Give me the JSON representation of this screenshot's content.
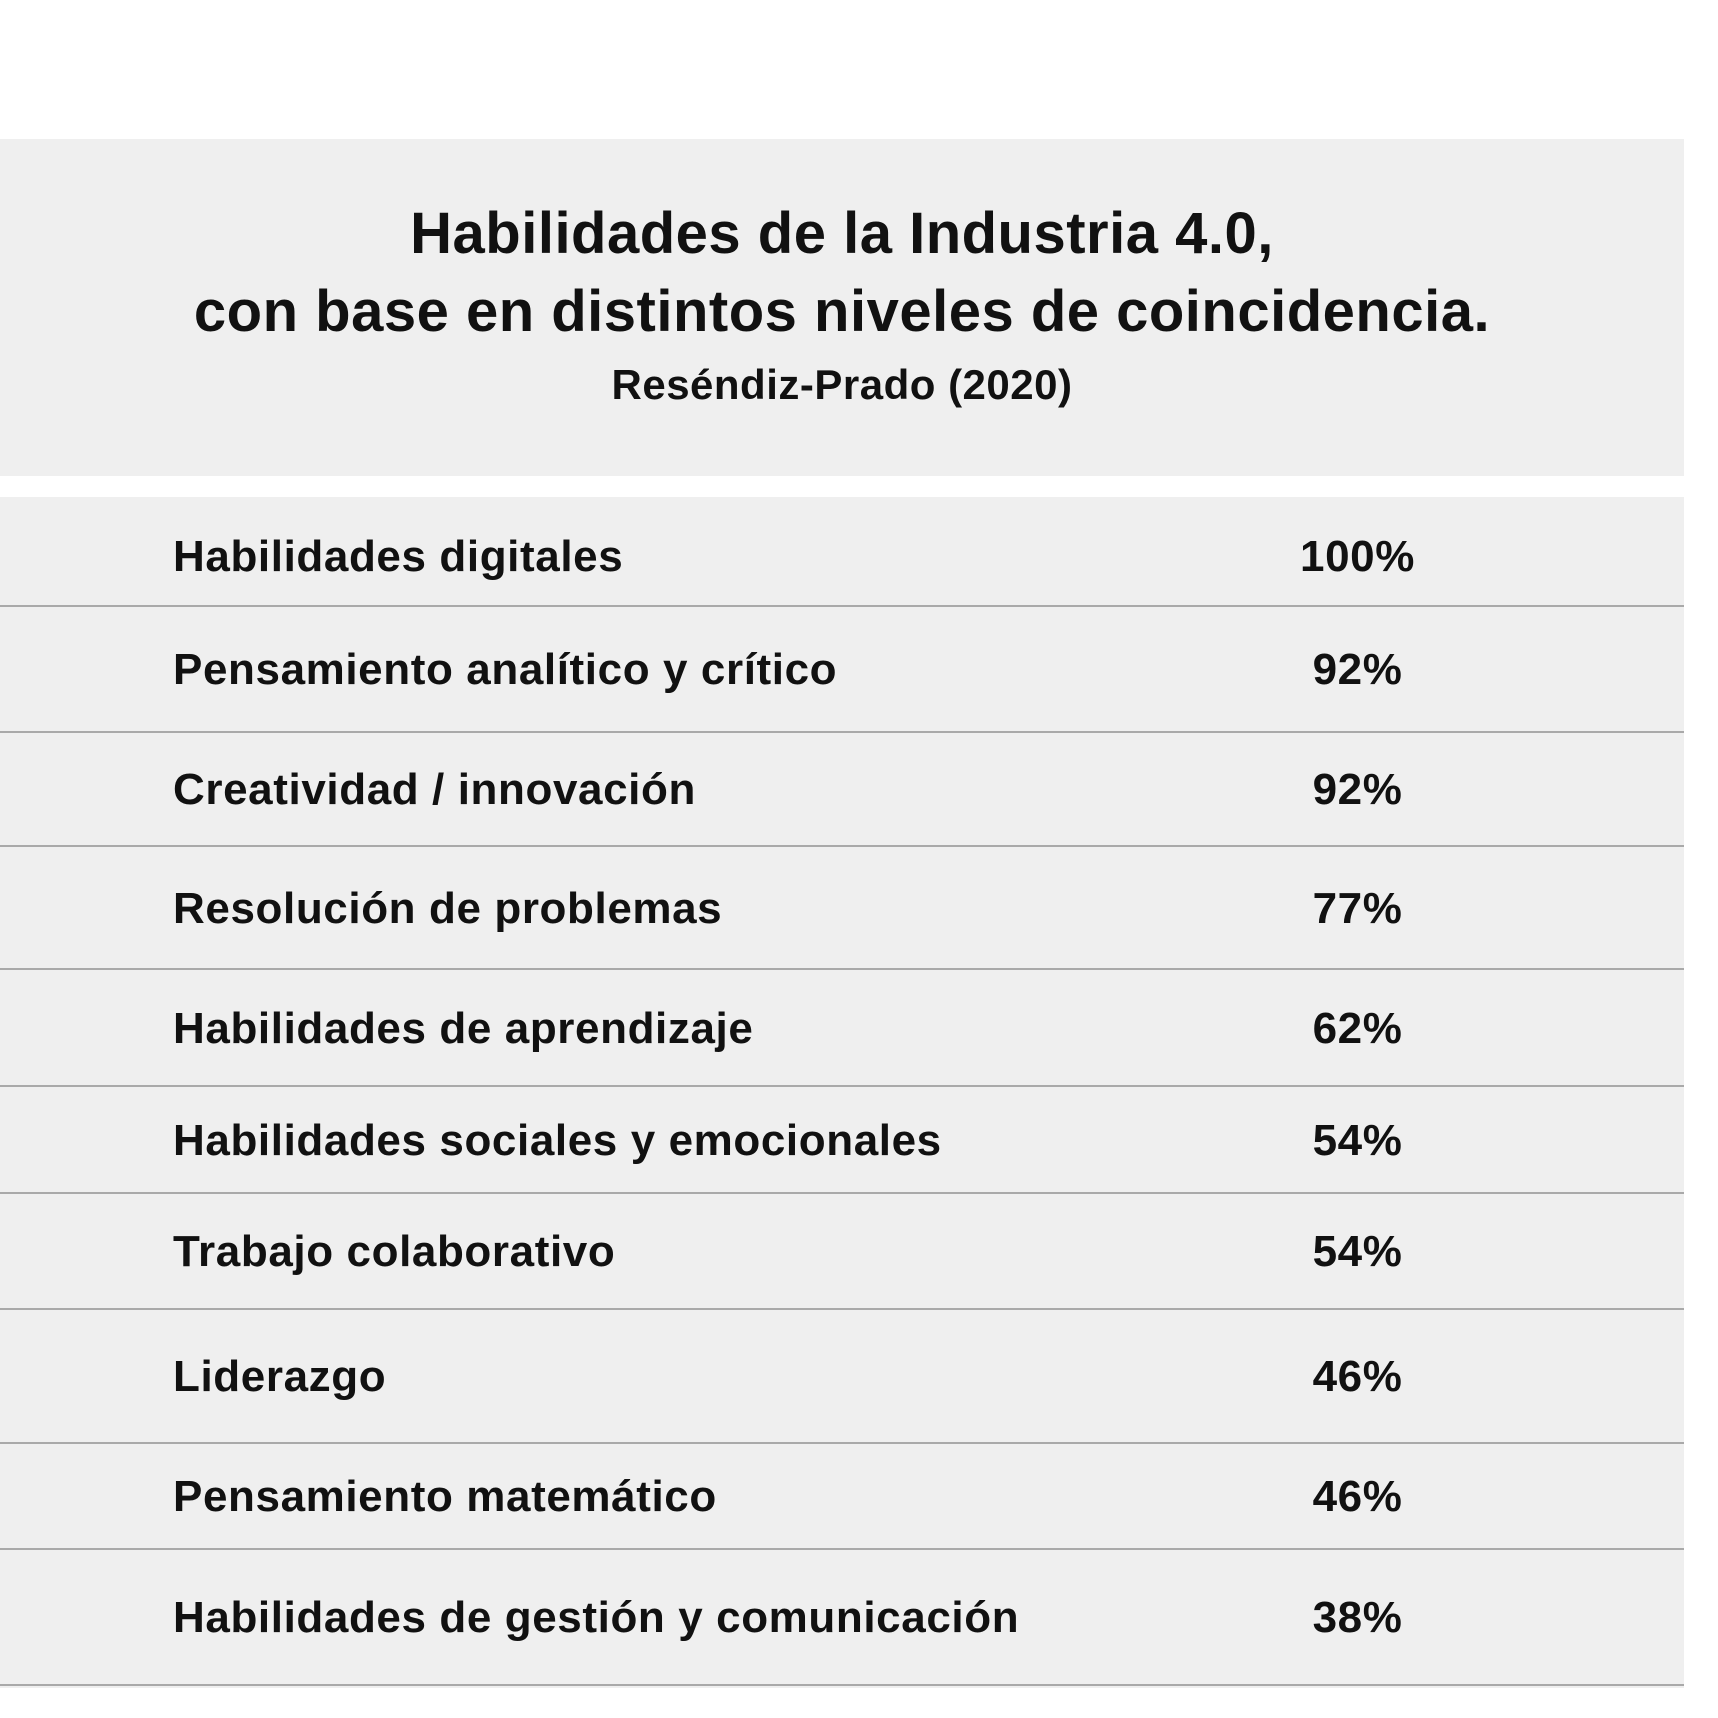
{
  "chart_data": {
    "type": "table",
    "title_lines": [
      "Habilidades de la Industria 4.0,",
      "con base en distintos niveles de coincidencia."
    ],
    "subtitle": "Reséndiz-Prado (2020)",
    "rows": [
      {
        "label": "Habilidades digitales",
        "value": "100%"
      },
      {
        "label": "Pensamiento analítico y crítico",
        "value": "92%"
      },
      {
        "label": "Creatividad / innovación",
        "value": "92%"
      },
      {
        "label": "Resolución de problemas",
        "value": "77%"
      },
      {
        "label": "Habilidades de aprendizaje",
        "value": "62%"
      },
      {
        "label": "Habilidades sociales y emocionales",
        "value": "54%"
      },
      {
        "label": "Trabajo colaborativo",
        "value": "54%"
      },
      {
        "label": "Liderazgo",
        "value": "46%"
      },
      {
        "label": "Pensamiento matemático",
        "value": "46%"
      },
      {
        "label": "Habilidades de gestión y comunicación",
        "value": "38%"
      }
    ]
  }
}
